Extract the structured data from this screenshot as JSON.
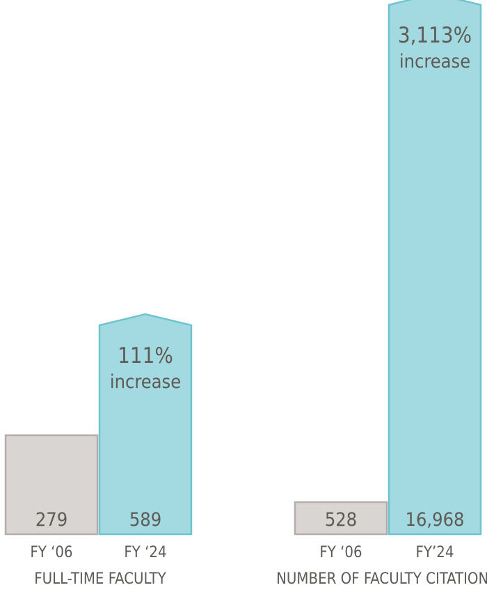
{
  "chart_data": [
    {
      "type": "bar",
      "title": "FULL-TIME FACULTY",
      "categories": [
        "FY ‘06",
        "FY ‘24"
      ],
      "values": [
        279,
        589
      ],
      "value_labels": [
        "279",
        "589"
      ],
      "annotation": {
        "percent": "111%",
        "word": "increase"
      }
    },
    {
      "type": "bar",
      "title": "NUMBER OF FACULTY CITATIONS",
      "categories": [
        "FY ‘06",
        "FY’24"
      ],
      "values": [
        528,
        16968
      ],
      "value_labels": [
        "528",
        "16,968"
      ],
      "annotation": {
        "percent": "3,113%",
        "word": "increase"
      }
    }
  ],
  "colors": {
    "baseline_fill": "#d9d5d3",
    "baseline_stroke": "#b3aeab",
    "current_fill": "#a3dae1",
    "current_stroke": "#6dc4cf",
    "text": "#5e5a56"
  }
}
